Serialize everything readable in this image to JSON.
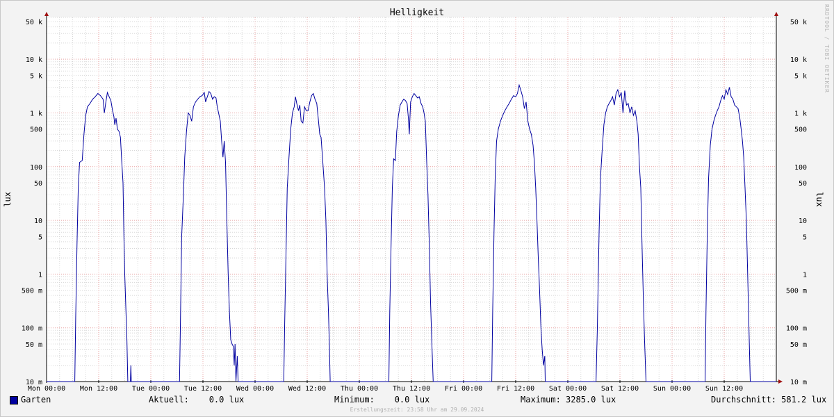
{
  "chart_data": {
    "type": "line",
    "title": "Helligkeit",
    "ylabel": "lux",
    "yscale": "log",
    "ylim": [
      0.01,
      60000
    ],
    "xlim": [
      0,
      168
    ],
    "x_unit": "hours since Mon 00:00",
    "x_ticks": [
      {
        "x": 0,
        "label": "Mon 00:00"
      },
      {
        "x": 12,
        "label": "Mon 12:00"
      },
      {
        "x": 24,
        "label": "Tue 00:00"
      },
      {
        "x": 36,
        "label": "Tue 12:00"
      },
      {
        "x": 48,
        "label": "Wed 00:00"
      },
      {
        "x": 60,
        "label": "Wed 12:00"
      },
      {
        "x": 72,
        "label": "Thu 00:00"
      },
      {
        "x": 84,
        "label": "Thu 12:00"
      },
      {
        "x": 96,
        "label": "Fri 00:00"
      },
      {
        "x": 108,
        "label": "Fri 12:00"
      },
      {
        "x": 120,
        "label": "Sat 00:00"
      },
      {
        "x": 132,
        "label": "Sat 12:00"
      },
      {
        "x": 144,
        "label": "Sun 00:00"
      },
      {
        "x": 156,
        "label": "Sun 12:00"
      }
    ],
    "y_ticks": [
      {
        "y": 50000,
        "label": "50 k"
      },
      {
        "y": 10000,
        "label": "10 k"
      },
      {
        "y": 5000,
        "label": "5 k"
      },
      {
        "y": 1000,
        "label": "1 k"
      },
      {
        "y": 500,
        "label": "500"
      },
      {
        "y": 100,
        "label": "100"
      },
      {
        "y": 50,
        "label": "50"
      },
      {
        "y": 10,
        "label": "10"
      },
      {
        "y": 5,
        "label": "5"
      },
      {
        "y": 1,
        "label": "1"
      },
      {
        "y": 0.5,
        "label": "500 m"
      },
      {
        "y": 0.1,
        "label": "100 m"
      },
      {
        "y": 0.05,
        "label": "50 m"
      },
      {
        "y": 0.01,
        "label": "10 m"
      }
    ],
    "series": [
      {
        "name": "Garten",
        "color": "#0000a0",
        "points": [
          [
            0,
            0.01
          ],
          [
            6.5,
            0.01
          ],
          [
            6.7,
            0.15
          ],
          [
            7,
            3.5
          ],
          [
            7.3,
            40
          ],
          [
            7.6,
            120
          ],
          [
            8.2,
            130
          ],
          [
            8.6,
            400
          ],
          [
            9,
            900
          ],
          [
            9.4,
            1300
          ],
          [
            10,
            1500
          ],
          [
            10.6,
            1800
          ],
          [
            11.2,
            2000
          ],
          [
            11.8,
            2300
          ],
          [
            12.4,
            2100
          ],
          [
            13,
            1800
          ],
          [
            13.3,
            1000
          ],
          [
            13.6,
            1500
          ],
          [
            14,
            2400
          ],
          [
            14.4,
            2000
          ],
          [
            14.8,
            1700
          ],
          [
            15.2,
            1100
          ],
          [
            15.5,
            850
          ],
          [
            15.7,
            600
          ],
          [
            16,
            800
          ],
          [
            16.3,
            500
          ],
          [
            16.7,
            450
          ],
          [
            17,
            350
          ],
          [
            17.3,
            130
          ],
          [
            17.6,
            50
          ],
          [
            17.8,
            5
          ],
          [
            18,
            1
          ],
          [
            18.2,
            0.3
          ],
          [
            18.5,
            0.06
          ],
          [
            18.7,
            0.01
          ],
          [
            19.3,
            0.01
          ],
          [
            19.4,
            0.02
          ],
          [
            19.5,
            0.01
          ],
          [
            30.6,
            0.01
          ],
          [
            30.8,
            0.1
          ],
          [
            31.1,
            5
          ],
          [
            31.5,
            30
          ],
          [
            31.8,
            150
          ],
          [
            32.2,
            450
          ],
          [
            32.6,
            1000
          ],
          [
            33,
            900
          ],
          [
            33.4,
            700
          ],
          [
            33.8,
            1300
          ],
          [
            34.3,
            1600
          ],
          [
            34.8,
            1800
          ],
          [
            35.3,
            2000
          ],
          [
            35.8,
            2100
          ],
          [
            36.3,
            2400
          ],
          [
            36.6,
            1600
          ],
          [
            37,
            2000
          ],
          [
            37.4,
            2500
          ],
          [
            37.8,
            2300
          ],
          [
            38.2,
            1800
          ],
          [
            38.6,
            2000
          ],
          [
            39,
            1900
          ],
          [
            39.3,
            1300
          ],
          [
            39.6,
            1000
          ],
          [
            40,
            700
          ],
          [
            40.3,
            300
          ],
          [
            40.6,
            150
          ],
          [
            40.9,
            300
          ],
          [
            41.2,
            120
          ],
          [
            41.5,
            10
          ],
          [
            41.8,
            1
          ],
          [
            42.1,
            0.2
          ],
          [
            42.4,
            0.06
          ],
          [
            42.7,
            0.05
          ],
          [
            43,
            0.045
          ],
          [
            43.2,
            0.02
          ],
          [
            43.4,
            0.05
          ],
          [
            43.6,
            0.01
          ],
          [
            43.9,
            0.03
          ],
          [
            44.1,
            0.01
          ],
          [
            54.6,
            0.01
          ],
          [
            54.8,
            0.1
          ],
          [
            55.1,
            2
          ],
          [
            55.4,
            40
          ],
          [
            55.8,
            150
          ],
          [
            56.2,
            500
          ],
          [
            56.6,
            1000
          ],
          [
            57,
            1300
          ],
          [
            57.3,
            2000
          ],
          [
            57.6,
            1500
          ],
          [
            58,
            1100
          ],
          [
            58.3,
            1400
          ],
          [
            58.6,
            700
          ],
          [
            59,
            650
          ],
          [
            59.4,
            1300
          ],
          [
            59.8,
            1100
          ],
          [
            60.2,
            1100
          ],
          [
            60.6,
            1600
          ],
          [
            61,
            2100
          ],
          [
            61.4,
            2300
          ],
          [
            61.8,
            1800
          ],
          [
            62.2,
            1500
          ],
          [
            62.6,
            700
          ],
          [
            62.9,
            400
          ],
          [
            63.2,
            350
          ],
          [
            63.6,
            120
          ],
          [
            64,
            40
          ],
          [
            64.3,
            10
          ],
          [
            64.6,
            1
          ],
          [
            64.9,
            0.2
          ],
          [
            65.1,
            0.05
          ],
          [
            65.3,
            0.01
          ],
          [
            78.8,
            0.01
          ],
          [
            79,
            0.2
          ],
          [
            79.3,
            3
          ],
          [
            79.6,
            40
          ],
          [
            79.9,
            140
          ],
          [
            80.3,
            130
          ],
          [
            80.6,
            450
          ],
          [
            81,
            900
          ],
          [
            81.4,
            1400
          ],
          [
            81.8,
            1600
          ],
          [
            82.2,
            1800
          ],
          [
            82.6,
            1700
          ],
          [
            83,
            1500
          ],
          [
            83.3,
            800
          ],
          [
            83.5,
            400
          ],
          [
            83.8,
            1600
          ],
          [
            84.2,
            2000
          ],
          [
            84.6,
            2300
          ],
          [
            85,
            2100
          ],
          [
            85.4,
            1900
          ],
          [
            85.8,
            2000
          ],
          [
            86.2,
            1500
          ],
          [
            86.6,
            1300
          ],
          [
            86.9,
            1000
          ],
          [
            87.2,
            700
          ],
          [
            87.5,
            130
          ],
          [
            87.8,
            30
          ],
          [
            88.1,
            4
          ],
          [
            88.4,
            0.3
          ],
          [
            88.7,
            0.05
          ],
          [
            89,
            0.01
          ],
          [
            102.5,
            0.01
          ],
          [
            102.7,
            0.2
          ],
          [
            103,
            6
          ],
          [
            103.3,
            70
          ],
          [
            103.6,
            300
          ],
          [
            104,
            500
          ],
          [
            104.5,
            700
          ],
          [
            105,
            900
          ],
          [
            105.5,
            1100
          ],
          [
            106,
            1300
          ],
          [
            106.5,
            1500
          ],
          [
            107,
            1800
          ],
          [
            107.5,
            2100
          ],
          [
            108,
            2000
          ],
          [
            108.4,
            2300
          ],
          [
            108.8,
            3285
          ],
          [
            109.2,
            2600
          ],
          [
            109.6,
            2000
          ],
          [
            110,
            1200
          ],
          [
            110.4,
            1600
          ],
          [
            110.8,
            700
          ],
          [
            111.2,
            500
          ],
          [
            111.6,
            400
          ],
          [
            112,
            250
          ],
          [
            112.3,
            120
          ],
          [
            112.6,
            40
          ],
          [
            112.9,
            10
          ],
          [
            113.2,
            2
          ],
          [
            113.5,
            0.5
          ],
          [
            113.8,
            0.1
          ],
          [
            114.1,
            0.04
          ],
          [
            114.4,
            0.02
          ],
          [
            114.7,
            0.03
          ],
          [
            114.8,
            0.01
          ],
          [
            126.5,
            0.01
          ],
          [
            126.8,
            0.1
          ],
          [
            127.2,
            6
          ],
          [
            127.5,
            60
          ],
          [
            127.9,
            200
          ],
          [
            128.3,
            600
          ],
          [
            128.7,
            1000
          ],
          [
            129.1,
            1300
          ],
          [
            129.5,
            1500
          ],
          [
            129.9,
            1700
          ],
          [
            130.3,
            2000
          ],
          [
            130.7,
            1400
          ],
          [
            131.1,
            2300
          ],
          [
            131.5,
            2700
          ],
          [
            131.9,
            2000
          ],
          [
            132.3,
            2400
          ],
          [
            132.7,
            1000
          ],
          [
            133.1,
            2600
          ],
          [
            133.5,
            1400
          ],
          [
            133.9,
            1500
          ],
          [
            134.3,
            1000
          ],
          [
            134.7,
            1300
          ],
          [
            135.1,
            900
          ],
          [
            135.5,
            1100
          ],
          [
            135.9,
            700
          ],
          [
            136.2,
            400
          ],
          [
            136.5,
            100
          ],
          [
            136.8,
            40
          ],
          [
            137.1,
            3
          ],
          [
            137.4,
            0.3
          ],
          [
            137.7,
            0.05
          ],
          [
            138,
            0.01
          ],
          [
            151.6,
            0.01
          ],
          [
            151.8,
            0.2
          ],
          [
            152.1,
            5
          ],
          [
            152.4,
            60
          ],
          [
            152.8,
            250
          ],
          [
            153.2,
            500
          ],
          [
            153.6,
            700
          ],
          [
            154,
            900
          ],
          [
            154.4,
            1100
          ],
          [
            154.8,
            1300
          ],
          [
            155.2,
            1700
          ],
          [
            155.6,
            2100
          ],
          [
            156,
            1800
          ],
          [
            156.4,
            2700
          ],
          [
            156.8,
            2200
          ],
          [
            157.2,
            3000
          ],
          [
            157.6,
            2000
          ],
          [
            158,
            1800
          ],
          [
            158.4,
            1400
          ],
          [
            158.8,
            1300
          ],
          [
            159.2,
            1200
          ],
          [
            159.6,
            800
          ],
          [
            159.9,
            500
          ],
          [
            160.2,
            300
          ],
          [
            160.5,
            150
          ],
          [
            160.8,
            40
          ],
          [
            161.1,
            10
          ],
          [
            161.4,
            1
          ],
          [
            161.7,
            0.1
          ],
          [
            162,
            0.01
          ],
          [
            168,
            0.01
          ]
        ]
      }
    ],
    "legend": {
      "series_name": "Garten",
      "current": "Aktuell:    0.0 lux",
      "minimum": "Minimum:    0.0 lux",
      "maximum": "Maximum: 3285.0 lux",
      "average": "Durchschnitt: 581.2 lux"
    }
  },
  "watermark": "RRDTOOL / TOBI OETIKER",
  "footer": "Erstellungszeit: 23:58 Uhr am 29.09.2024",
  "colors": {
    "line": "#0000a0",
    "major_grid": "#e8a0a0",
    "minor_grid": "#d8d8d8",
    "canvas": "#ffffff",
    "background": "#f3f3f3",
    "axis_arrow": "#a01010"
  }
}
